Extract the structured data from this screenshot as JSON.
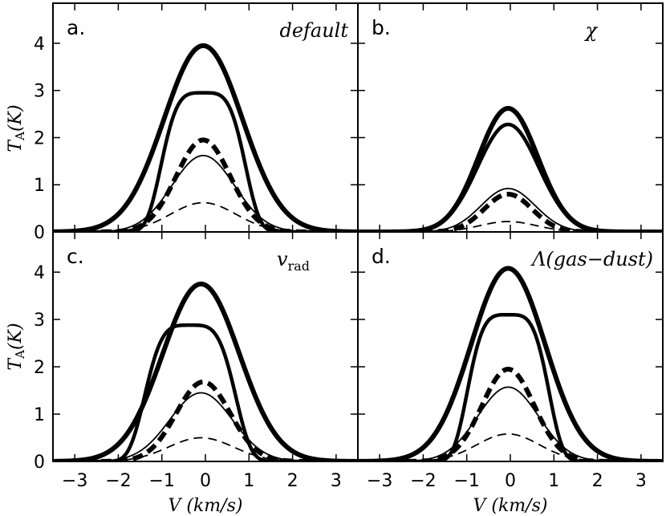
{
  "chart_data": [
    {
      "type": "line",
      "panel_label": "a.",
      "annotation": "default",
      "xlabel": "V (km/s)",
      "ylabel": "T_A(K)",
      "xlim": [
        -3.5,
        3.5
      ],
      "ylim": [
        0,
        4.85
      ],
      "xticks": [
        -3,
        -2,
        -1,
        0,
        1,
        2,
        3
      ],
      "yticks": [
        0,
        1,
        2,
        3,
        4
      ],
      "series": [
        {
          "style": "thick-solid",
          "shape": "single",
          "peak": 3.95,
          "center": -0.05,
          "sigma": 0.9
        },
        {
          "style": "solid",
          "shape": "flat",
          "peak": 2.95,
          "center": -0.05,
          "sigma": 0.88
        },
        {
          "style": "thick-dashed",
          "shape": "single",
          "peak": 1.95,
          "center": -0.05,
          "sigma": 0.62
        },
        {
          "style": "thin-solid",
          "shape": "single",
          "peak": 1.62,
          "center": -0.05,
          "sigma": 0.72
        },
        {
          "style": "thin-dashed",
          "shape": "single",
          "peak": 0.62,
          "center": -0.05,
          "sigma": 0.75
        }
      ]
    },
    {
      "type": "line",
      "panel_label": "b.",
      "annotation": "χ",
      "xlabel": "V (km/s)",
      "ylabel": "T_A(K)",
      "xlim": [
        -3.5,
        3.5
      ],
      "ylim": [
        0,
        4.85
      ],
      "xticks": [
        -3,
        -2,
        -1,
        0,
        1,
        2,
        3
      ],
      "yticks": [
        0,
        1,
        2,
        3,
        4
      ],
      "series": [
        {
          "style": "thick-solid",
          "shape": "single",
          "peak": 2.62,
          "center": -0.05,
          "sigma": 0.68
        },
        {
          "style": "solid",
          "shape": "single",
          "peak": 2.28,
          "center": -0.05,
          "sigma": 0.7
        },
        {
          "style": "thick-dashed",
          "shape": "single",
          "peak": 0.8,
          "center": -0.05,
          "sigma": 0.55
        },
        {
          "style": "thin-solid",
          "shape": "single",
          "peak": 0.92,
          "center": -0.05,
          "sigma": 0.62
        },
        {
          "style": "thin-dashed",
          "shape": "single",
          "peak": 0.22,
          "center": -0.05,
          "sigma": 0.65
        }
      ]
    },
    {
      "type": "line",
      "panel_label": "c.",
      "annotation": "v_rad",
      "xlabel": "V (km/s)",
      "ylabel": "T_A(K)",
      "xlim": [
        -3.5,
        3.5
      ],
      "ylim": [
        0,
        4.85
      ],
      "xticks": [
        -3,
        -2,
        -1,
        0,
        1,
        2,
        3
      ],
      "yticks": [
        0,
        1,
        2,
        3,
        4
      ],
      "series": [
        {
          "style": "thick-solid",
          "shape": "single",
          "peak": 3.75,
          "center": -0.1,
          "sigma": 0.88
        },
        {
          "style": "solid",
          "shape": "flat",
          "peak": 2.88,
          "center": -0.35,
          "sigma": 0.95
        },
        {
          "style": "thick-dashed",
          "shape": "single",
          "peak": 1.68,
          "center": -0.05,
          "sigma": 0.62
        },
        {
          "style": "thin-solid",
          "shape": "single",
          "peak": 1.45,
          "center": -0.1,
          "sigma": 0.72
        },
        {
          "style": "thin-dashed",
          "shape": "single",
          "peak": 0.5,
          "center": -0.1,
          "sigma": 0.75
        }
      ]
    },
    {
      "type": "line",
      "panel_label": "d.",
      "annotation": "Λ(gas−dust)",
      "xlabel": "V (km/s)",
      "ylabel": "T_A(K)",
      "xlim": [
        -3.5,
        3.5
      ],
      "ylim": [
        0,
        4.85
      ],
      "xticks": [
        -3,
        -2,
        -1,
        0,
        1,
        2,
        3
      ],
      "yticks": [
        0,
        1,
        2,
        3,
        4
      ],
      "series": [
        {
          "style": "thick-solid",
          "shape": "single",
          "peak": 4.08,
          "center": -0.05,
          "sigma": 0.85
        },
        {
          "style": "solid",
          "shape": "flat",
          "peak": 3.1,
          "center": -0.05,
          "sigma": 0.85
        },
        {
          "style": "thick-dashed",
          "shape": "single",
          "peak": 1.95,
          "center": -0.05,
          "sigma": 0.6
        },
        {
          "style": "thin-solid",
          "shape": "single",
          "peak": 1.57,
          "center": -0.05,
          "sigma": 0.7
        },
        {
          "style": "thin-dashed",
          "shape": "single",
          "peak": 0.58,
          "center": -0.05,
          "sigma": 0.72
        }
      ]
    }
  ]
}
